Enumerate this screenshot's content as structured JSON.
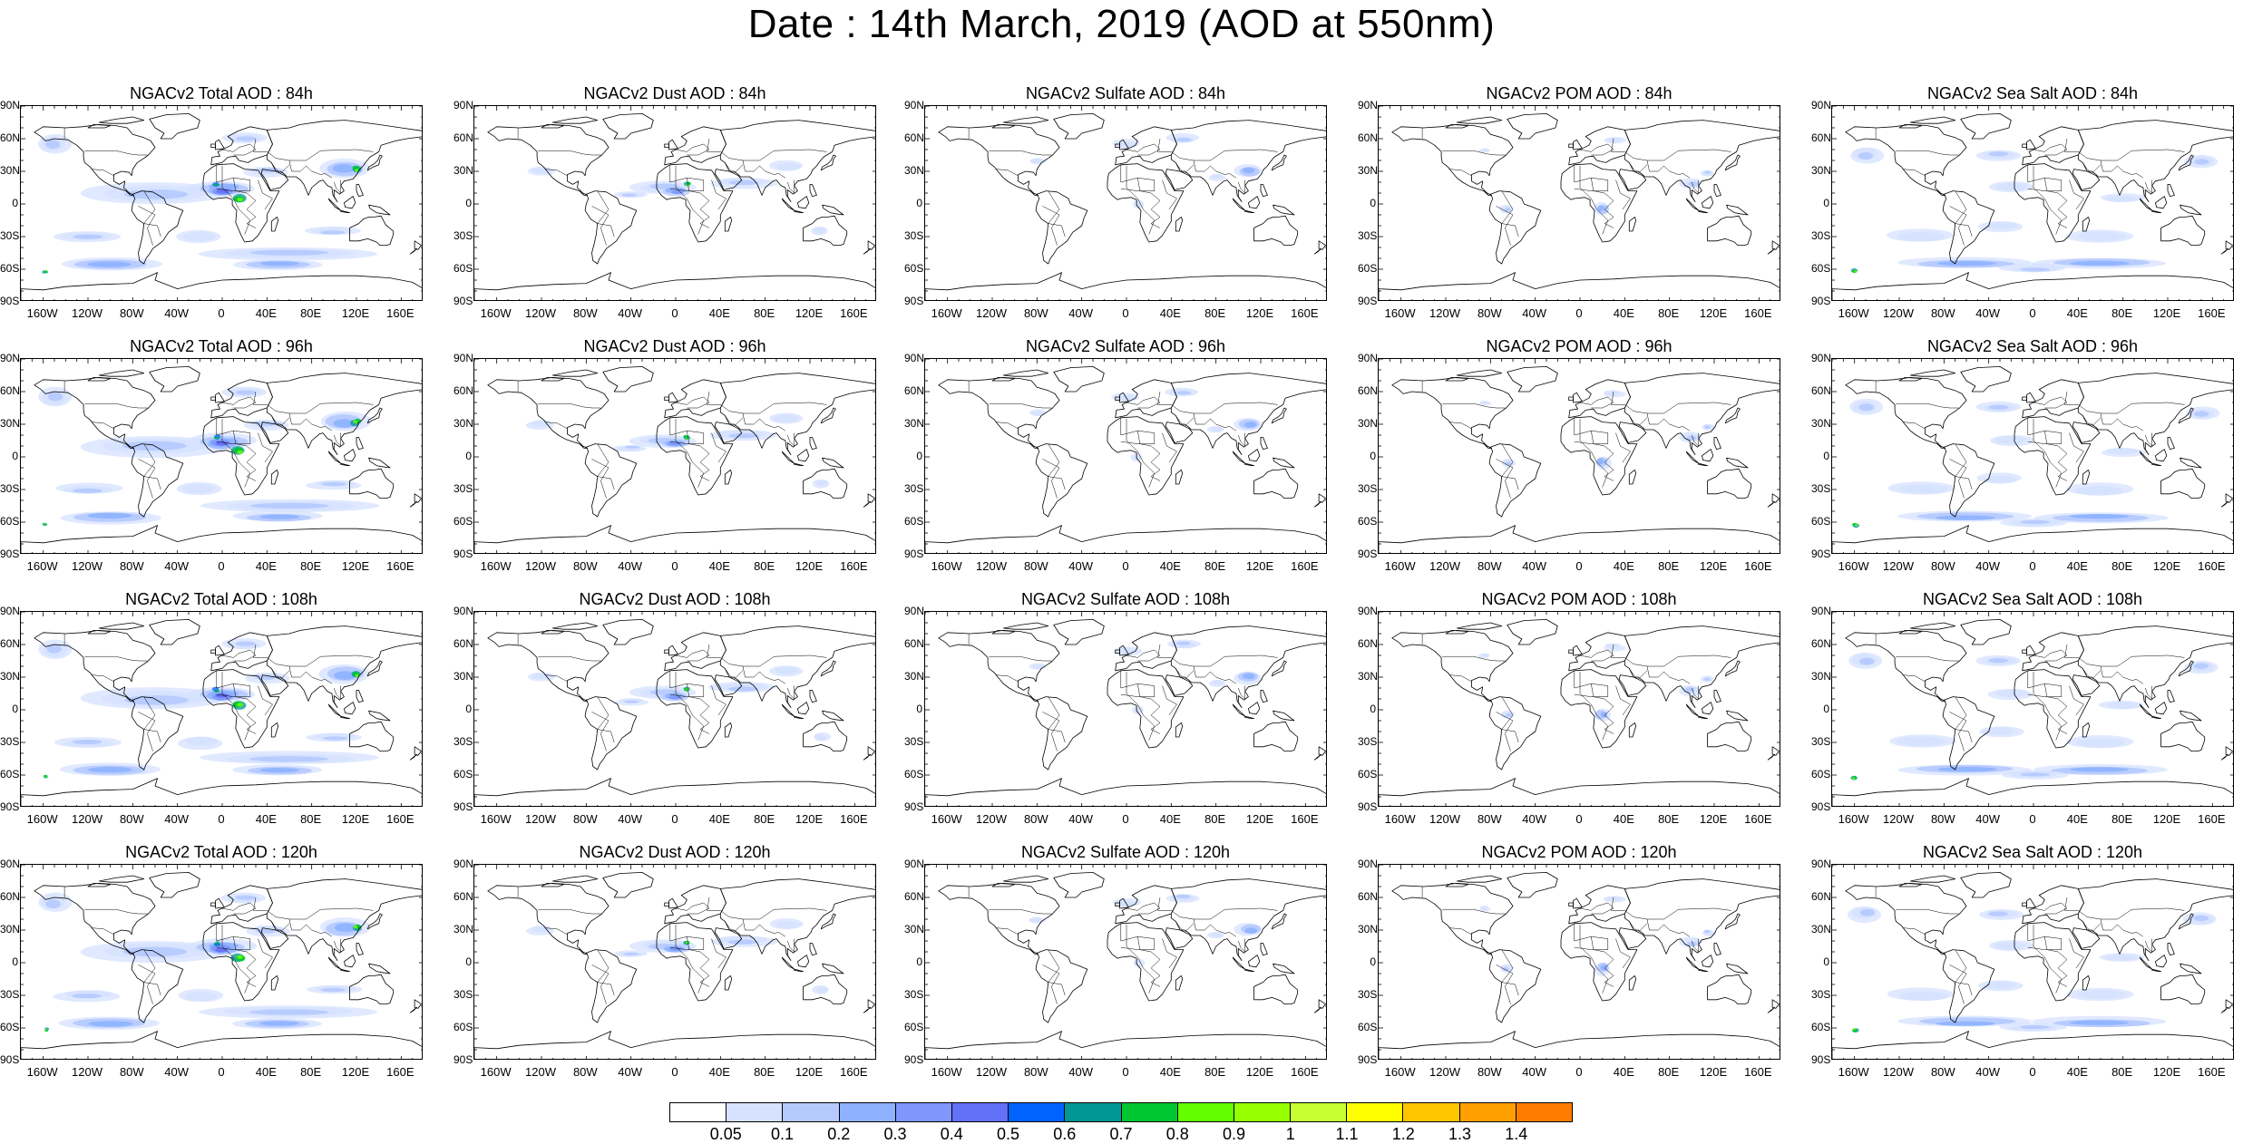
{
  "page_title": "Date : 14th March, 2019 (AOD at 550nm)",
  "lat_labels": [
    "90N",
    "60N",
    "30N",
    "0",
    "30S",
    "60S",
    "90S"
  ],
  "lon_labels": [
    "160W",
    "120W",
    "80W",
    "40W",
    "0",
    "40E",
    "80E",
    "120E",
    "160E"
  ],
  "panels": [
    {
      "title": "NGACv2 Total AOD : 84h",
      "species": "total"
    },
    {
      "title": "NGACv2 Dust AOD : 84h",
      "species": "dust"
    },
    {
      "title": "NGACv2 Sulfate AOD : 84h",
      "species": "sulfate"
    },
    {
      "title": "NGACv2 POM AOD : 84h",
      "species": "pom"
    },
    {
      "title": "NGACv2 Sea Salt AOD : 84h",
      "species": "seasalt"
    },
    {
      "title": "NGACv2 Total AOD : 96h",
      "species": "total"
    },
    {
      "title": "NGACv2 Dust AOD : 96h",
      "species": "dust"
    },
    {
      "title": "NGACv2 Sulfate AOD : 96h",
      "species": "sulfate"
    },
    {
      "title": "NGACv2 POM AOD : 96h",
      "species": "pom"
    },
    {
      "title": "NGACv2 Sea Salt AOD : 96h",
      "species": "seasalt"
    },
    {
      "title": "NGACv2 Total AOD : 108h",
      "species": "total"
    },
    {
      "title": "NGACv2 Dust AOD : 108h",
      "species": "dust"
    },
    {
      "title": "NGACv2 Sulfate AOD : 108h",
      "species": "sulfate"
    },
    {
      "title": "NGACv2 POM AOD : 108h",
      "species": "pom"
    },
    {
      "title": "NGACv2 Sea Salt AOD : 108h",
      "species": "seasalt"
    },
    {
      "title": "NGACv2 Total AOD : 120h",
      "species": "total"
    },
    {
      "title": "NGACv2 Dust AOD : 120h",
      "species": "dust"
    },
    {
      "title": "NGACv2 Sulfate AOD : 120h",
      "species": "sulfate"
    },
    {
      "title": "NGACv2 POM AOD : 120h",
      "species": "pom"
    },
    {
      "title": "NGACv2 Sea Salt  AOD : 120h",
      "species": "seasalt"
    }
  ],
  "colorbar": {
    "colors": [
      "#ffffff",
      "#d6e2ff",
      "#b5c9ff",
      "#8eb2ff",
      "#7f96ff",
      "#6370f8",
      "#0063ff",
      "#009696",
      "#00c633",
      "#63ff00",
      "#96ff00",
      "#c6ff33",
      "#ffff00",
      "#ffc600",
      "#ffa000",
      "#ff7c00",
      "#ff1900"
    ],
    "labels": [
      "0.05",
      "0.1",
      "0.2",
      "0.3",
      "0.4",
      "0.5",
      "0.6",
      "0.7",
      "0.8",
      "0.9",
      "1",
      "1.1",
      "1.2",
      "1.3",
      "1.4"
    ]
  }
}
